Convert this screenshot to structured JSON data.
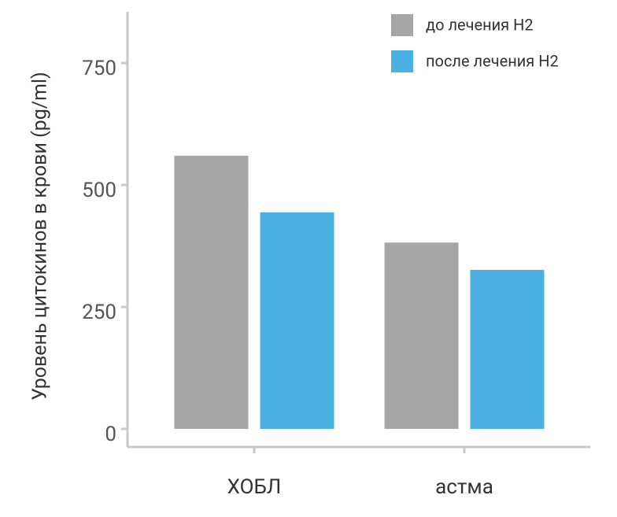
{
  "chart_data": {
    "type": "bar",
    "ylabel": "Уровень цитокинов в крови (pg/ml)",
    "categories": [
      "ХОБЛ",
      "астма"
    ],
    "series": [
      {
        "name": "до лечения H2",
        "color": "#a6a6a6",
        "values": [
          560,
          382
        ]
      },
      {
        "name": "после лечения H2",
        "color": "#4ab1e4",
        "values": [
          444,
          326
        ]
      }
    ],
    "ylim": [
      -37,
      855
    ],
    "yticks": [
      0,
      250,
      500,
      750
    ],
    "legend": "top-right"
  }
}
